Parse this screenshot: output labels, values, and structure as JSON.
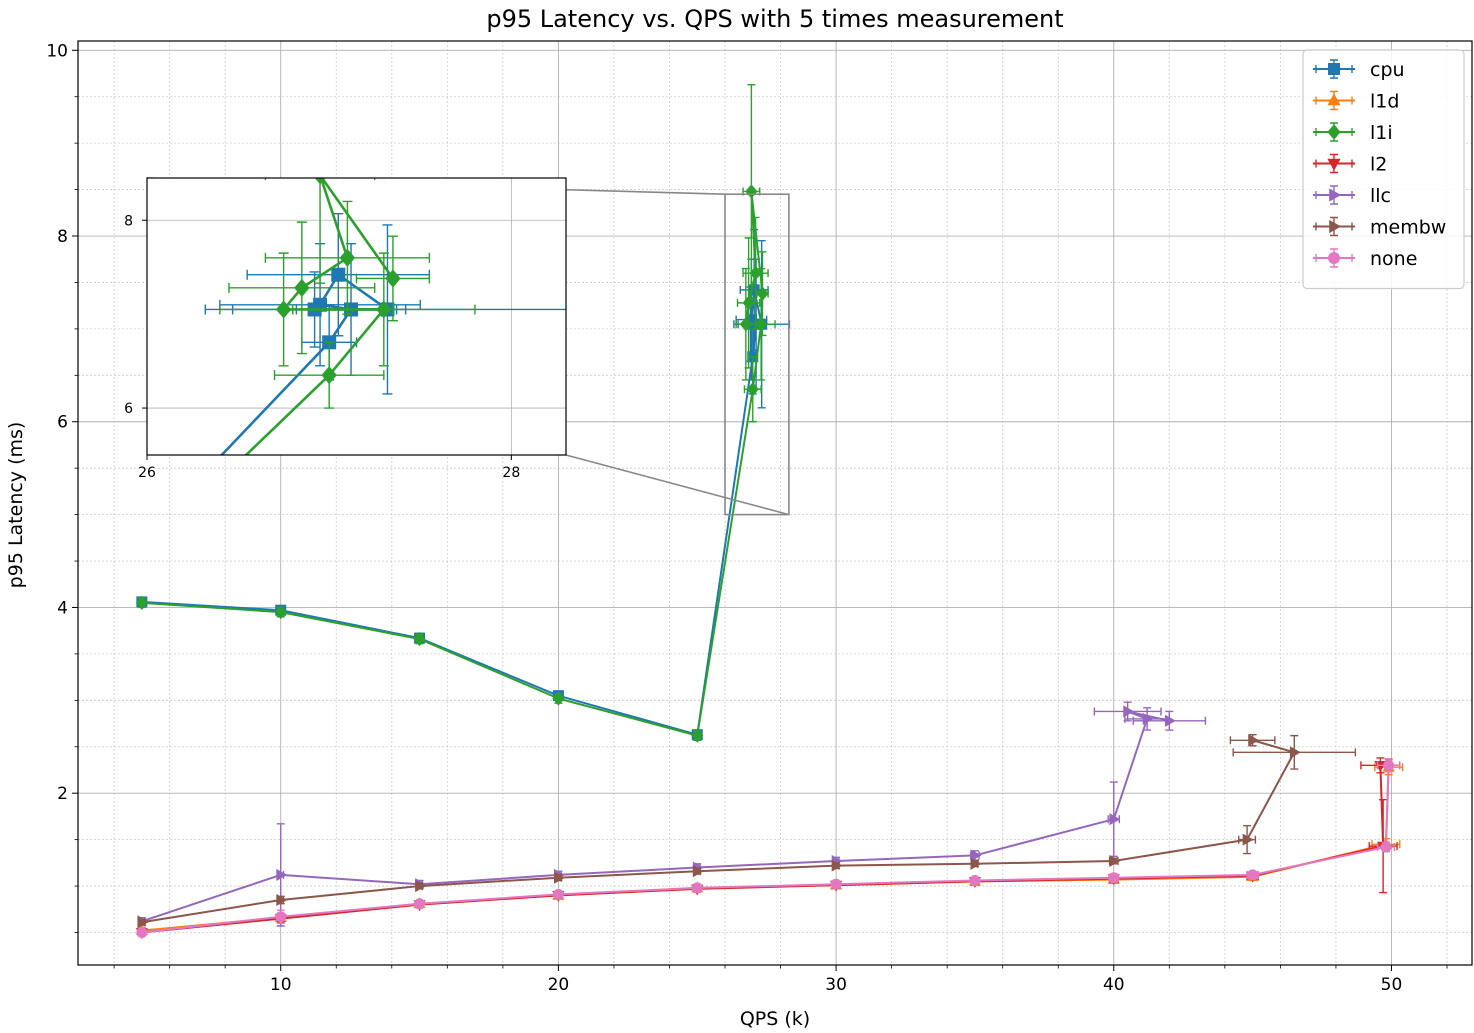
{
  "chart_data": {
    "type": "line",
    "title": "p95 Latency vs. QPS with 5 times measurement",
    "xlabel": "QPS (k)",
    "ylabel": "p95 Latency (ms)",
    "xlim": [
      2.7,
      52.9
    ],
    "ylim": [
      0.15,
      10.1
    ],
    "xticks": [
      10,
      20,
      30,
      40,
      50
    ],
    "yticks": [
      2,
      4,
      6,
      8,
      10
    ],
    "grid": "major and minor",
    "legend_position": "top-right",
    "series": [
      {
        "name": "cpu",
        "color": "#1f77b4",
        "marker": "square",
        "x": [
          5,
          10,
          15,
          20,
          25,
          27.0,
          27.12,
          26.95,
          27.05,
          27.32,
          26.92
        ],
        "y": [
          4.06,
          3.97,
          3.67,
          3.05,
          2.63,
          6.7,
          7.05,
          7.1,
          7.42,
          7.05,
          7.05
        ],
        "xerr": [
          0.05,
          0.05,
          0.05,
          0.05,
          0.05,
          0.15,
          0.3,
          0.55,
          0.5,
          1.0,
          0.45
        ],
        "yerr": [
          0.05,
          0.05,
          0.05,
          0.05,
          0.05,
          0.4,
          0.7,
          0.65,
          0.65,
          0.9,
          0.4
        ]
      },
      {
        "name": "l1d",
        "color": "#ff7f0e",
        "marker": "triangle-up",
        "x": [
          5,
          10,
          15,
          20,
          25,
          30,
          35,
          40,
          45,
          49.8,
          49.9
        ],
        "y": [
          0.52,
          0.66,
          0.81,
          0.9,
          0.98,
          1.01,
          1.05,
          1.07,
          1.1,
          1.45,
          2.28
        ],
        "xerr": [
          0.1,
          0.1,
          0.1,
          0.1,
          0.1,
          0.1,
          0.1,
          0.15,
          0.2,
          0.5,
          0.5
        ],
        "yerr": [
          0.03,
          0.04,
          0.03,
          0.03,
          0.03,
          0.03,
          0.03,
          0.03,
          0.03,
          0.06,
          0.08
        ]
      },
      {
        "name": "l1i",
        "color": "#2ca02c",
        "marker": "diamond",
        "x": [
          5,
          10,
          15,
          20,
          25,
          27.0,
          27.3,
          26.75,
          26.85,
          27.1,
          26.95,
          27.35
        ],
        "y": [
          4.05,
          3.95,
          3.66,
          3.02,
          2.62,
          6.35,
          7.05,
          7.05,
          7.28,
          7.6,
          8.48,
          7.38
        ],
        "xerr": [
          0.05,
          0.05,
          0.05,
          0.05,
          0.05,
          0.3,
          0.5,
          0.35,
          0.4,
          0.45,
          0.3,
          0.2
        ],
        "yerr": [
          0.05,
          0.05,
          0.05,
          0.05,
          0.05,
          0.35,
          0.6,
          0.6,
          0.7,
          0.6,
          1.15,
          0.45
        ]
      },
      {
        "name": "l2",
        "color": "#d62728",
        "marker": "triangle-down",
        "x": [
          5,
          10,
          15,
          20,
          25,
          30,
          35,
          40,
          45,
          49.7,
          49.6
        ],
        "y": [
          0.5,
          0.65,
          0.8,
          0.9,
          0.97,
          1.01,
          1.05,
          1.08,
          1.11,
          1.43,
          2.3
        ],
        "xerr": [
          0.1,
          0.1,
          0.1,
          0.1,
          0.1,
          0.1,
          0.1,
          0.15,
          0.2,
          0.5,
          0.7
        ],
        "yerr": [
          0.03,
          0.04,
          0.03,
          0.03,
          0.03,
          0.03,
          0.03,
          0.03,
          0.03,
          0.5,
          0.08
        ]
      },
      {
        "name": "llc",
        "color": "#9467bd",
        "marker": "triangle-right",
        "x": [
          5,
          10,
          15,
          20,
          25,
          30,
          35,
          40,
          41.2,
          40.5,
          42.0
        ],
        "y": [
          0.62,
          1.12,
          1.02,
          1.12,
          1.2,
          1.27,
          1.33,
          1.72,
          2.8,
          2.88,
          2.78
        ],
        "xerr": [
          0.1,
          0.1,
          0.1,
          0.1,
          0.1,
          0.1,
          0.15,
          0.2,
          0.8,
          1.2,
          1.3
        ],
        "yerr": [
          0.04,
          0.55,
          0.04,
          0.04,
          0.04,
          0.04,
          0.05,
          0.4,
          0.12,
          0.1,
          0.1
        ]
      },
      {
        "name": "membw",
        "color": "#8c564b",
        "marker": "triangle-right",
        "x": [
          5,
          10,
          15,
          20,
          25,
          30,
          35,
          40,
          44.8,
          46.5,
          45.0
        ],
        "y": [
          0.61,
          0.85,
          1.0,
          1.09,
          1.16,
          1.22,
          1.24,
          1.27,
          1.5,
          2.44,
          2.57
        ],
        "xerr": [
          0.1,
          0.1,
          0.1,
          0.1,
          0.1,
          0.1,
          0.1,
          0.15,
          0.3,
          2.2,
          0.8
        ],
        "yerr": [
          0.03,
          0.04,
          0.03,
          0.03,
          0.03,
          0.03,
          0.03,
          0.03,
          0.15,
          0.18,
          0.06
        ]
      },
      {
        "name": "none",
        "color": "#e377c2",
        "marker": "circle",
        "x": [
          5,
          10,
          15,
          20,
          25,
          30,
          35,
          40,
          45,
          49.8,
          49.9
        ],
        "y": [
          0.5,
          0.67,
          0.81,
          0.91,
          0.98,
          1.02,
          1.06,
          1.09,
          1.12,
          1.42,
          2.3
        ],
        "xerr": [
          0.1,
          0.1,
          0.1,
          0.1,
          0.1,
          0.1,
          0.1,
          0.15,
          0.2,
          0.3,
          0.4
        ],
        "yerr": [
          0.03,
          0.07,
          0.03,
          0.03,
          0.03,
          0.03,
          0.03,
          0.03,
          0.03,
          0.05,
          0.07
        ]
      }
    ],
    "inset": {
      "xlim": [
        26,
        28.3
      ],
      "ylim": [
        5.5,
        8.45
      ],
      "xticks": [
        26,
        28
      ],
      "yticks": [
        6,
        8
      ],
      "series_shown": [
        "cpu",
        "l1i"
      ]
    }
  }
}
